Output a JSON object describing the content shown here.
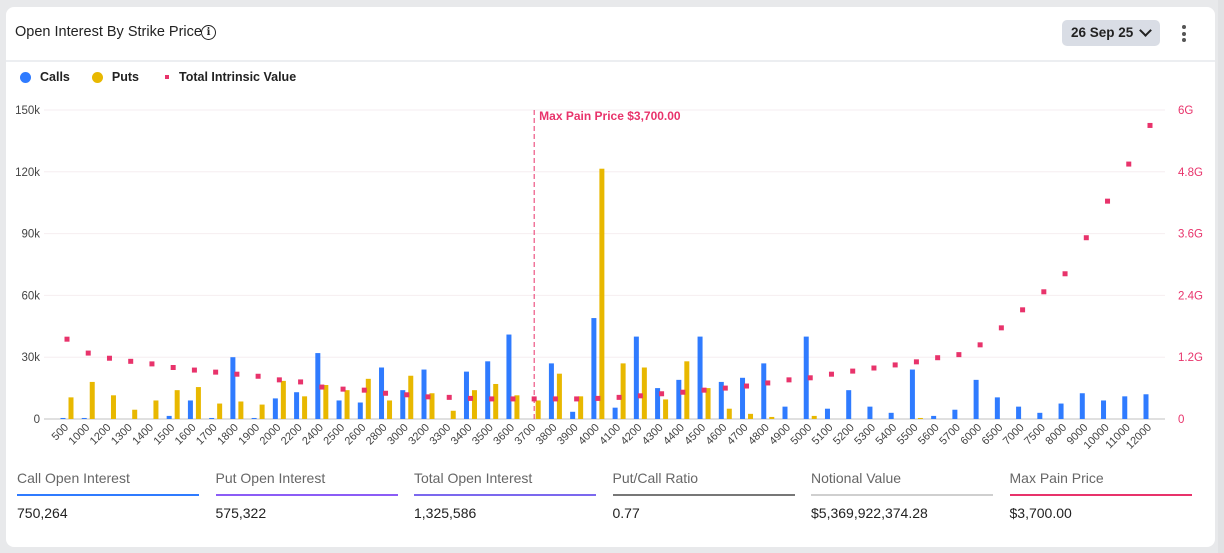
{
  "header": {
    "title": "Open Interest By Strike Price",
    "info_icon": "info-circle-icon",
    "date_selector": "26 Sep 25",
    "menu_icon": "kebab-menu-icon"
  },
  "colors": {
    "calls": "#2f7bff",
    "puts": "#e8b800",
    "intrinsic": "#e8336b"
  },
  "chart_data": {
    "type": "bar",
    "legend": [
      "Calls",
      "Puts",
      "Total Intrinsic Value"
    ],
    "legend_placement": "top-left",
    "categories": [
      "500",
      "1000",
      "1200",
      "1300",
      "1400",
      "1500",
      "1600",
      "1700",
      "1800",
      "1900",
      "2000",
      "2200",
      "2400",
      "2500",
      "2600",
      "2800",
      "3000",
      "3200",
      "3300",
      "3400",
      "3500",
      "3600",
      "3700",
      "3800",
      "3900",
      "4000",
      "4100",
      "4200",
      "4300",
      "4400",
      "4500",
      "4600",
      "4700",
      "4800",
      "4900",
      "5000",
      "5100",
      "5200",
      "5300",
      "5400",
      "5500",
      "5600",
      "5700",
      "6000",
      "6500",
      "7000",
      "7500",
      "8000",
      "9000",
      "10000",
      "11000",
      "12000"
    ],
    "series": [
      {
        "name": "Calls",
        "type": "bar",
        "axis": "left",
        "values": [
          500,
          500,
          0,
          0,
          0,
          1500,
          9000,
          500,
          30000,
          500,
          10000,
          13000,
          32000,
          9000,
          8000,
          25000,
          14000,
          24000,
          0,
          23000,
          28000,
          41000,
          0,
          27000,
          3500,
          49000,
          5500,
          40000,
          15000,
          19000,
          40000,
          18000,
          20000,
          27000,
          6000,
          40000,
          5000,
          14000,
          6000,
          3000,
          24000,
          1500,
          4500,
          19000,
          10500,
          6000,
          3000,
          7500,
          12500,
          9000,
          11000,
          12000
        ]
      },
      {
        "name": "Puts",
        "type": "bar",
        "axis": "left",
        "values": [
          10500,
          18000,
          11500,
          4500,
          9000,
          14000,
          15500,
          7500,
          8500,
          7000,
          18500,
          11000,
          16500,
          14000,
          19500,
          9000,
          21000,
          12500,
          4000,
          14000,
          17000,
          11500,
          9000,
          22000,
          11000,
          121500,
          27000,
          25000,
          9500,
          28000,
          15000,
          5000,
          2500,
          1000,
          0,
          1500,
          0,
          0,
          0,
          0,
          500,
          0,
          0,
          0,
          0,
          0,
          0,
          0,
          0,
          0,
          0,
          0
        ]
      },
      {
        "name": "Total Intrinsic Value",
        "type": "scatter",
        "axis": "right",
        "values": [
          1550000000.0,
          1280000000.0,
          1180000000.0,
          1120000000.0,
          1070000000.0,
          1000000000.0,
          950000000.0,
          910000000.0,
          870000000.0,
          830000000.0,
          760000000.0,
          720000000.0,
          620000000.0,
          580000000.0,
          560000000.0,
          500000000.0,
          470000000.0,
          430000000.0,
          420000000.0,
          400000000.0,
          390000000.0,
          390000000.0,
          390000000.0,
          390000000.0,
          390000000.0,
          400000000.0,
          420000000.0,
          450000000.0,
          490000000.0,
          520000000.0,
          560000000.0,
          600000000.0,
          640000000.0,
          700000000.0,
          760000000.0,
          800000000.0,
          870000000.0,
          930000000.0,
          990000000.0,
          1050000000.0,
          1110000000.0,
          1190000000.0,
          1250000000.0,
          1440000000.0,
          1770000000.0,
          2120000000.0,
          2470000000.0,
          2820000000.0,
          3520000000.0,
          4230000000.0,
          4950000000.0,
          5700000000.0
        ]
      }
    ],
    "ylim": [
      0,
      150000
    ],
    "y_ticks": [
      "0",
      "30k",
      "60k",
      "90k",
      "120k",
      "150k"
    ],
    "y2lim": [
      0,
      6000000000
    ],
    "y2_ticks": [
      "0",
      "1.2G",
      "2.4G",
      "3.6G",
      "4.8G",
      "6G"
    ],
    "grid": true,
    "annotation": {
      "label": "Max Pain Price $3,700.00",
      "category": "3700"
    }
  },
  "stats": [
    {
      "label": "Call Open Interest",
      "value": "750,264",
      "color": "#2f7bff"
    },
    {
      "label": "Put Open Interest",
      "value": "575,322",
      "color": "#8b5cf6"
    },
    {
      "label": "Total Open Interest",
      "value": "1,325,586",
      "color": "#7b68ee"
    },
    {
      "label": "Put/Call Ratio",
      "value": "0.77",
      "color": "#777777"
    },
    {
      "label": "Notional Value",
      "value": "$5,369,922,374.28",
      "color": "#cfcfcf"
    },
    {
      "label": "Max Pain Price",
      "value": "$3,700.00",
      "color": "#e8336b"
    }
  ]
}
